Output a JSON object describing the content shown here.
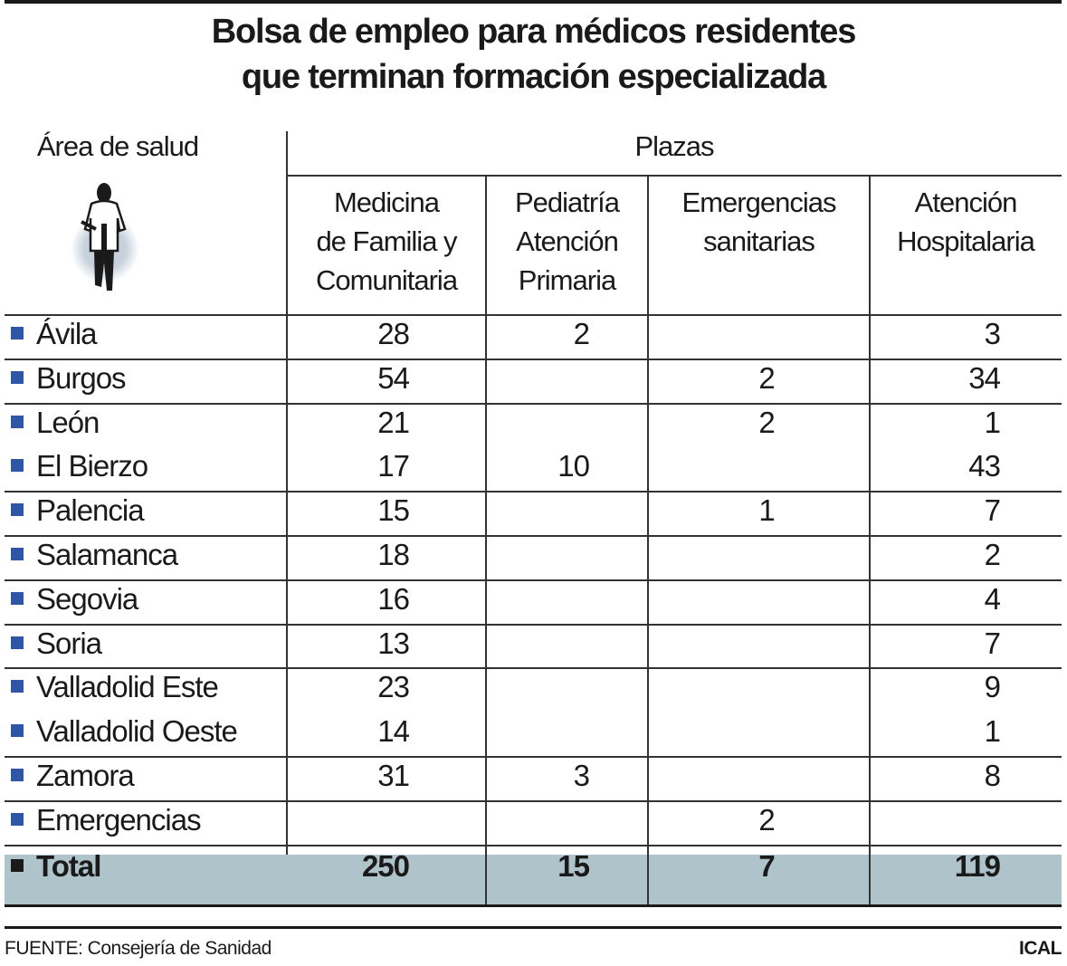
{
  "title_line1": "Bolsa de empleo para médicos residentes",
  "title_line2": "que terminan formación especializada",
  "chart_data": {
    "type": "table",
    "row_header": "Área de salud",
    "group_header": "Plazas",
    "columns": [
      {
        "line1": "Medicina",
        "line2": "de Familia y",
        "line3": "Comunitaria"
      },
      {
        "line1": "Pediatría",
        "line2": "Atención",
        "line3": "Primaria"
      },
      {
        "line1": "Emergencias",
        "line2": "sanitarias",
        "line3": ""
      },
      {
        "line1": "Atención",
        "line2": "Hospitalaria",
        "line3": ""
      }
    ],
    "rows": [
      {
        "area": "Ávila",
        "values": [
          "28",
          "2",
          "",
          "3"
        ]
      },
      {
        "area": "Burgos",
        "values": [
          "54",
          "",
          "2",
          "34"
        ]
      },
      {
        "area": "León",
        "values": [
          "21",
          "",
          "2",
          "1"
        ]
      },
      {
        "area": "El Bierzo",
        "values": [
          "17",
          "10",
          "",
          "43"
        ]
      },
      {
        "area": "Palencia",
        "values": [
          "15",
          "",
          "1",
          "7"
        ]
      },
      {
        "area": "Salamanca",
        "values": [
          "18",
          "",
          "",
          "2"
        ]
      },
      {
        "area": "Segovia",
        "values": [
          "16",
          "",
          "",
          "4"
        ]
      },
      {
        "area": "Soria",
        "values": [
          "13",
          "",
          "",
          "7"
        ]
      },
      {
        "area": "Valladolid Este",
        "values": [
          "23",
          "",
          "",
          "9"
        ]
      },
      {
        "area": "Valladolid Oeste",
        "values": [
          "14",
          "",
          "",
          "1"
        ]
      },
      {
        "area": "Zamora",
        "values": [
          "31",
          "3",
          "",
          "8"
        ]
      },
      {
        "area": "Emergencias",
        "values": [
          "",
          "",
          "2",
          ""
        ]
      }
    ],
    "total": {
      "area": "Total",
      "values": [
        "250",
        "15",
        "7",
        "119"
      ]
    }
  },
  "colors": {
    "row_marker": "#2f56a6",
    "total_background": "#aec3ca"
  },
  "icon": "doctor-silhouette-icon",
  "footer": {
    "source": "FUENTE: Consejería de Sanidad",
    "agency": "ICAL"
  }
}
